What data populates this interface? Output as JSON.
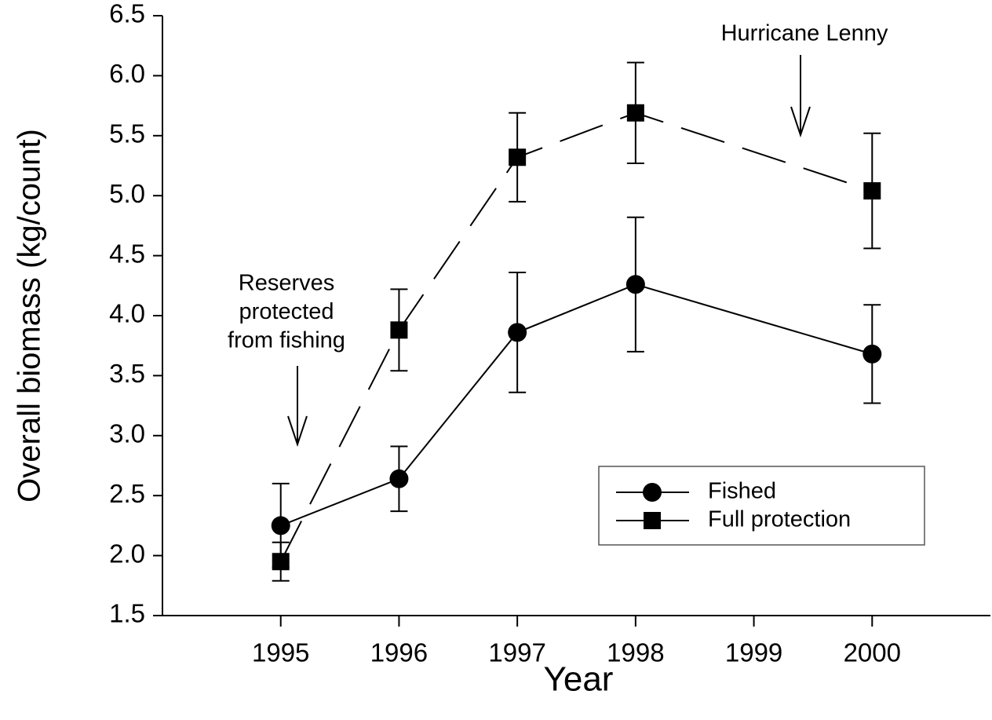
{
  "chart_data": {
    "type": "line",
    "x_label": "Year",
    "y_label": "Overall biomass (kg/count)",
    "x": [
      1995,
      1996,
      1997,
      1998,
      2000
    ],
    "series": [
      {
        "name": "Fished",
        "color": "#000000",
        "marker": "circle",
        "line_style": "solid",
        "values": [
          2.25,
          2.64,
          3.86,
          4.26,
          3.68
        ],
        "errors": [
          0.35,
          0.27,
          0.5,
          0.56,
          0.41
        ]
      },
      {
        "name": "Full protection",
        "color": "#000000",
        "marker": "square",
        "line_style": "dashed",
        "values": [
          1.95,
          3.88,
          5.32,
          5.69,
          5.04
        ],
        "errors": [
          0.16,
          0.34,
          0.37,
          0.42,
          0.48
        ]
      }
    ],
    "xlim": [
      1994,
      2001
    ],
    "xticks": [
      1995,
      1996,
      1997,
      1998,
      1999,
      2000
    ],
    "ylim": [
      1.5,
      6.5
    ],
    "yticks": [
      1.5,
      {
        "value": 2,
        "label": "2.0"
      },
      2.5,
      {
        "value": 3,
        "label": "3.0"
      },
      3.5,
      {
        "value": 4,
        "label": "4.0"
      },
      4.5,
      {
        "value": 5,
        "label": "5.0"
      },
      5.5,
      {
        "value": 6,
        "label": "6.0"
      },
      6.5
    ],
    "legend": "lower right",
    "annotations": [
      {
        "lines": [
          "Hurricane Lenny"
        ]
      },
      {
        "lines": [
          "Reserves",
          "protected",
          "from fishing"
        ]
      }
    ]
  }
}
